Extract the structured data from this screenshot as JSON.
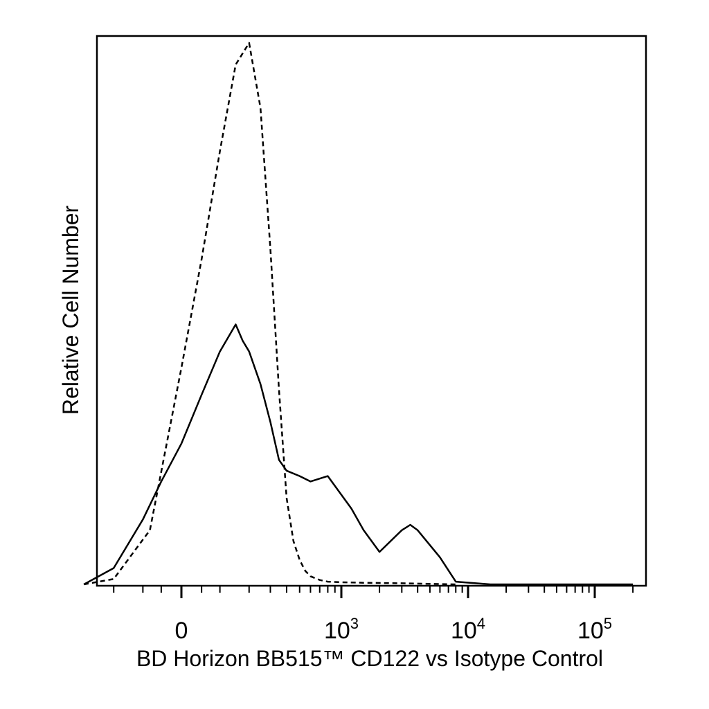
{
  "chart_data": {
    "type": "line",
    "title": "",
    "xlabel": "BD Horizon BB515™ CD122 vs Isotype Control",
    "ylabel": "Relative Cell Number",
    "x_scale": "biexponential",
    "xlim": [
      -500,
      250000
    ],
    "ylim": [
      0,
      1.0
    ],
    "grid": false,
    "legend": "none",
    "x_ticks": [
      {
        "value": 0,
        "base": "0",
        "exp": ""
      },
      {
        "value": 1000,
        "base": "10",
        "exp": "3"
      },
      {
        "value": 10000,
        "base": "10",
        "exp": "4"
      },
      {
        "value": 100000,
        "base": "10",
        "exp": "5"
      }
    ],
    "series": [
      {
        "style": "dashed",
        "color": "#000000",
        "x": [
          -350,
          -200,
          -80,
          0,
          50,
          100,
          150,
          200,
          250,
          300,
          350,
          400,
          450,
          500,
          550,
          600,
          700,
          800,
          1000,
          1500,
          3000,
          8000
        ],
        "y": [
          0.0,
          0.01,
          0.1,
          0.4,
          0.6,
          0.8,
          0.96,
          1.0,
          0.88,
          0.62,
          0.36,
          0.16,
          0.08,
          0.045,
          0.025,
          0.015,
          0.008,
          0.005,
          0.004,
          0.003,
          0.002,
          0.0
        ]
      },
      {
        "style": "solid",
        "color": "#000000",
        "x": [
          -350,
          -200,
          -100,
          -50,
          0,
          50,
          100,
          150,
          175,
          200,
          250,
          300,
          350,
          400,
          500,
          600,
          800,
          1200,
          1500,
          2000,
          3000,
          3500,
          4000,
          6000,
          8000,
          15000,
          50000,
          200000
        ],
        "y": [
          0.0,
          0.03,
          0.12,
          0.19,
          0.26,
          0.35,
          0.43,
          0.48,
          0.45,
          0.43,
          0.37,
          0.3,
          0.23,
          0.21,
          0.2,
          0.19,
          0.2,
          0.14,
          0.1,
          0.06,
          0.1,
          0.11,
          0.1,
          0.05,
          0.005,
          0.0,
          0.0,
          0.0
        ]
      }
    ]
  }
}
